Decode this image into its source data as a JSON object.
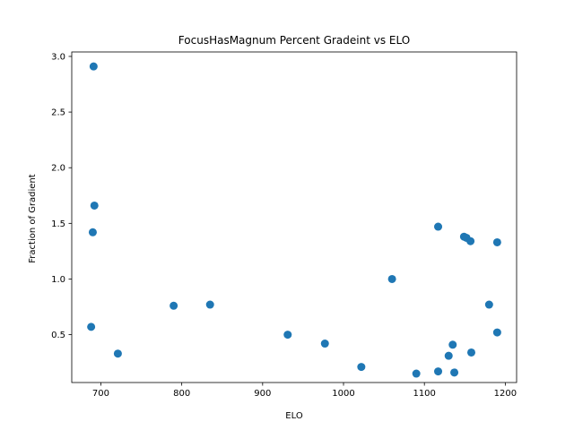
{
  "chart_data": {
    "type": "scatter",
    "title": "FocusHasMagnum Percent Gradeint vs ELO",
    "xlabel": "ELO",
    "ylabel": "Fraction of Gradient",
    "xlim": [
      664,
      1214
    ],
    "ylim": [
      0.07,
      3.04
    ],
    "xticks": [
      700,
      800,
      900,
      1000,
      1100,
      1200
    ],
    "yticks": [
      0.5,
      1.0,
      1.5,
      2.0,
      2.5,
      3.0
    ],
    "xtick_labels": [
      "700",
      "800",
      "900",
      "1000",
      "1100",
      "1200"
    ],
    "ytick_labels": [
      "0.5",
      "1.0",
      "1.5",
      "2.0",
      "2.5",
      "3.0"
    ],
    "grid": false,
    "legend": false,
    "marker_color": "#1f77b4",
    "x": [
      688,
      690,
      691,
      692,
      721,
      790,
      835,
      931,
      977,
      1022,
      1060,
      1090,
      1117,
      1117,
      1130,
      1135,
      1137,
      1149,
      1152,
      1157,
      1158,
      1180,
      1190,
      1190
    ],
    "y": [
      0.57,
      1.42,
      2.91,
      1.66,
      0.33,
      0.76,
      0.77,
      0.5,
      0.42,
      0.21,
      1.0,
      0.15,
      1.47,
      0.17,
      0.31,
      0.41,
      0.16,
      1.38,
      1.37,
      1.34,
      0.34,
      0.77,
      1.33,
      0.52
    ]
  }
}
